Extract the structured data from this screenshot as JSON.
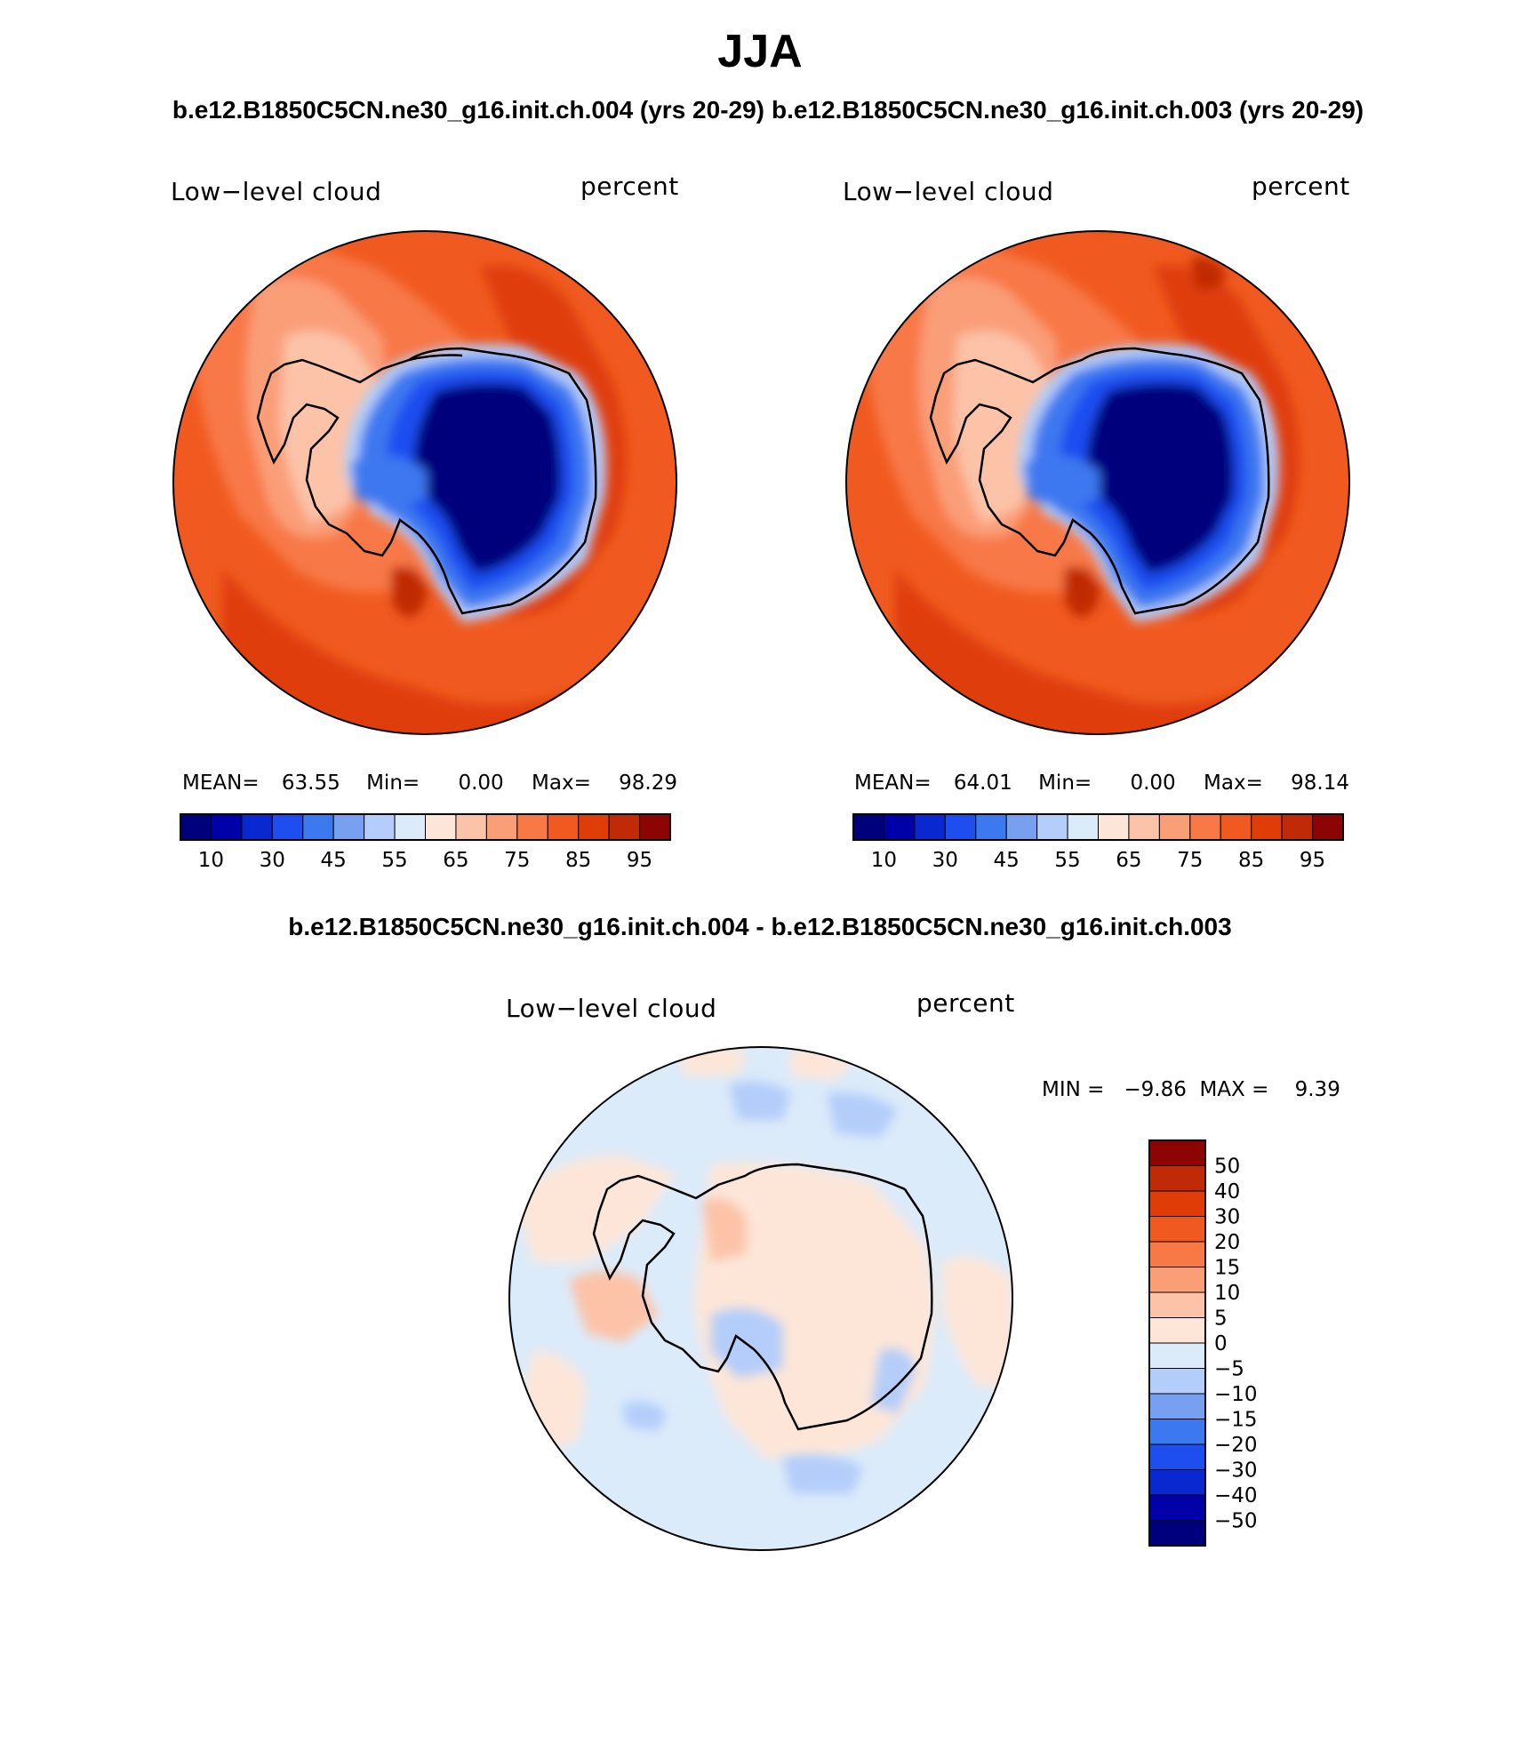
{
  "figure": {
    "season": "JJA",
    "top_subtitle_left": "b.e12.B1850C5CN.ne30_g16.init.ch.004 (yrs 20-29)",
    "top_subtitle_right": "b.e12.B1850C5CN.ne30_g16.init.ch.003 (yrs 20-29)",
    "diff_subtitle": "b.e12.B1850C5CN.ne30_g16.init.ch.004 - b.e12.B1850C5CN.ne30_g16.init.ch.003"
  },
  "panels": [
    {
      "variable": "Low−level cloud",
      "units": "percent",
      "stats": {
        "mean_label": "MEAN=",
        "mean": "63.55",
        "min_label": "Min=",
        "min": "0.00",
        "max_label": "Max=",
        "max": "98.29"
      }
    },
    {
      "variable": "Low−level cloud",
      "units": "percent",
      "stats": {
        "mean_label": "MEAN=",
        "mean": "64.01",
        "min_label": "Min=",
        "min": "0.00",
        "max_label": "Max=",
        "max": "98.14"
      }
    }
  ],
  "diff_panel": {
    "variable": "Low−level cloud",
    "units": "percent",
    "minmax_text": "MIN =   −9.86  MAX =    9.39"
  },
  "colorbar_main": {
    "labels": [
      "10",
      "30",
      "45",
      "55",
      "65",
      "75",
      "85",
      "95"
    ],
    "colors": [
      "#00007d",
      "#0000a8",
      "#0a28d0",
      "#1e4ef0",
      "#3c78f0",
      "#78a0f0",
      "#b4cdfa",
      "#dcebfa",
      "#fde6d8",
      "#fcc3a8",
      "#fa9e78",
      "#f87846",
      "#f05a20",
      "#e03c08",
      "#c02a06",
      "#8c0404"
    ]
  },
  "colorbar_diff": {
    "labels": [
      "50",
      "40",
      "30",
      "20",
      "15",
      "10",
      "5",
      "0",
      "−5",
      "−10",
      "−15",
      "−20",
      "−30",
      "−40",
      "−50"
    ],
    "colors": [
      "#8c0404",
      "#c02a06",
      "#e03c08",
      "#f05a20",
      "#f87846",
      "#fa9e78",
      "#fcc3a8",
      "#fde6d8",
      "#dcebfa",
      "#b4cdfa",
      "#78a0f0",
      "#3c78f0",
      "#1e4ef0",
      "#0a28d0",
      "#0000a8",
      "#00007d"
    ]
  }
}
